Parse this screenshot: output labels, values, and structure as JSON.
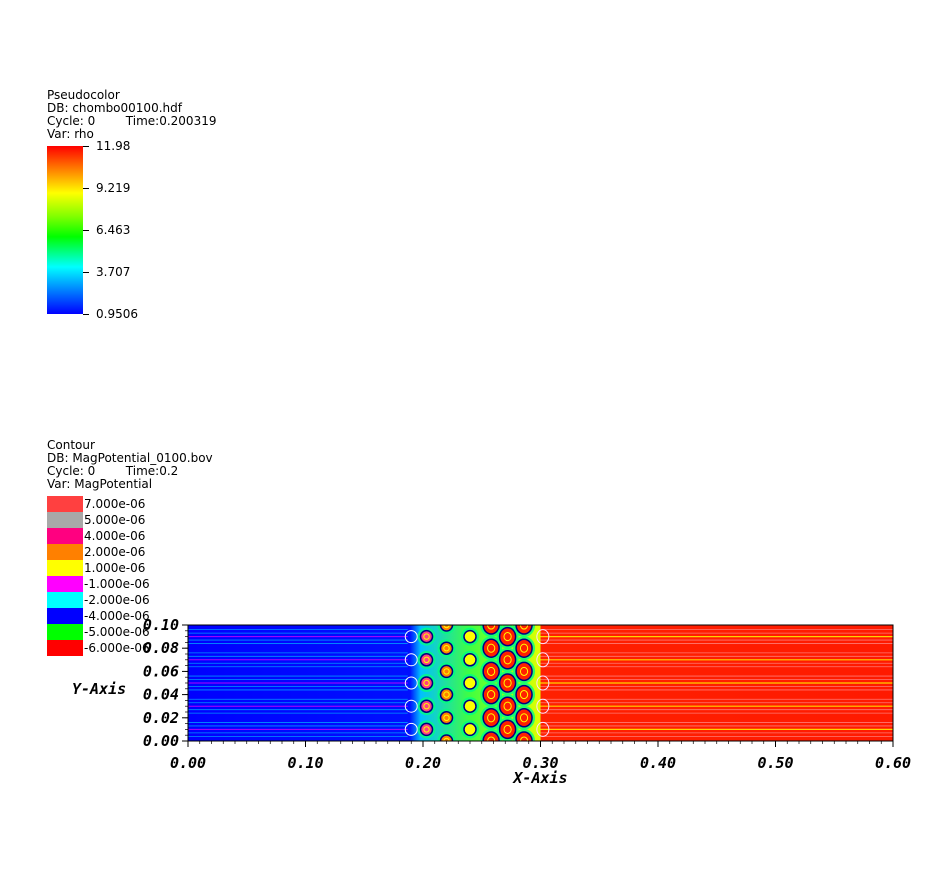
{
  "pseudocolor_legend": {
    "plot_type": "Pseudocolor",
    "db": "DB: chombo00100.hdf",
    "cycle_time": "Cycle: 0        Time:0.200319",
    "var": "Var: rho",
    "ticks": [
      "11.98",
      "9.219",
      "6.463",
      "3.707",
      "0.9506"
    ]
  },
  "contour_legend": {
    "plot_type": "Contour",
    "db": "DB: MagPotential_0100.bov",
    "cycle_time": "Cycle: 0        Time:0.2",
    "var": "Var: MagPotential",
    "levels": [
      {
        "label": "7.000e-06",
        "color": "#ff4040"
      },
      {
        "label": "5.000e-06",
        "color": "#a8a8a8"
      },
      {
        "label": "4.000e-06",
        "color": "#ff0080"
      },
      {
        "label": "2.000e-06",
        "color": "#ff8000"
      },
      {
        "label": "1.000e-06",
        "color": "#ffff00"
      },
      {
        "label": "-1.000e-06",
        "color": "#ff00ff"
      },
      {
        "label": "-2.000e-06",
        "color": "#00ffff"
      },
      {
        "label": "-4.000e-06",
        "color": "#0000ff"
      },
      {
        "label": "-5.000e-06",
        "color": "#00ff00"
      },
      {
        "label": "-6.000e-06",
        "color": "#ff0000"
      }
    ]
  },
  "chart_data": {
    "type": "heatmap",
    "xlabel": "X-Axis",
    "ylabel": "Y-Axis",
    "xlim": [
      0.0,
      0.6
    ],
    "ylim": [
      0.0,
      0.1
    ],
    "xticks": [
      "0.00",
      "0.10",
      "0.20",
      "0.30",
      "0.40",
      "0.50",
      "0.60"
    ],
    "yticks": [
      "0.00",
      "0.02",
      "0.04",
      "0.06",
      "0.08",
      "0.10"
    ],
    "regions": [
      {
        "x_range": [
          0.0,
          0.19
        ],
        "dominant_color": "#0000ff",
        "description_level": "low rho"
      },
      {
        "x_range": [
          0.19,
          0.3
        ],
        "dominant_color": "#00ff00",
        "description_level": "shock interaction cells"
      },
      {
        "x_range": [
          0.3,
          0.6
        ],
        "dominant_color": "#ff2000",
        "description_level": "high rho"
      }
    ],
    "cell_rows_y": [
      0.01,
      0.03,
      0.05,
      0.07,
      0.09
    ],
    "cell_columns_x": [
      0.203,
      0.22,
      0.24,
      0.258,
      0.272,
      0.286
    ]
  }
}
